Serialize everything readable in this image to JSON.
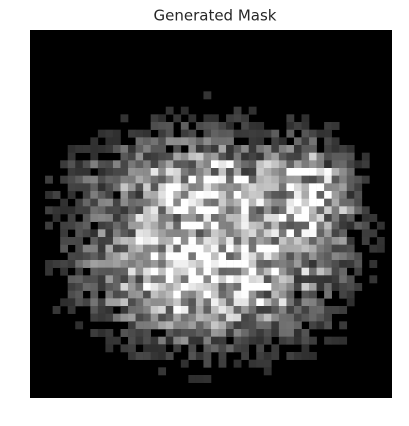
{
  "title": "Generated Mask"
}
